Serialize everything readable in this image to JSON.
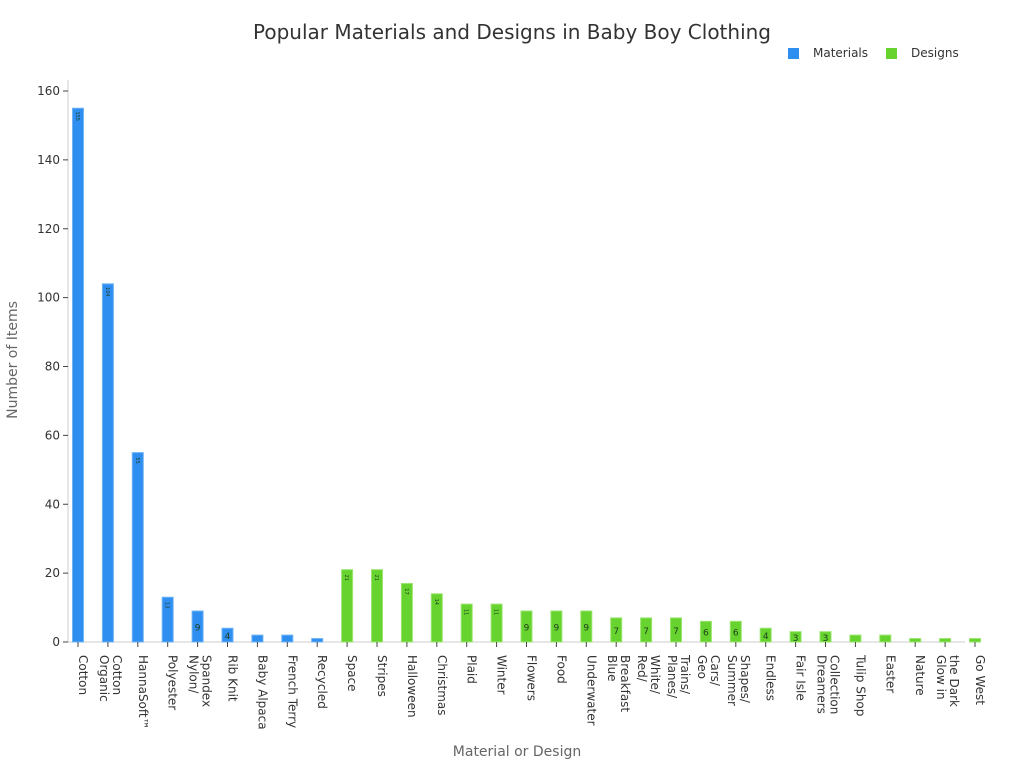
{
  "chart_data": {
    "type": "bar",
    "title": "Popular Materials and Designs in Baby Boy Clothing",
    "xlabel": "Material or Design",
    "ylabel": "Number of Items",
    "ylim": [
      0,
      160
    ],
    "yticks": [
      0,
      20,
      40,
      60,
      80,
      100,
      120,
      140,
      160
    ],
    "grid": false,
    "legend_position": "top-right",
    "legend": [
      {
        "name": "Materials",
        "color": "#2f8ff0"
      },
      {
        "name": "Designs",
        "color": "#66d32e"
      }
    ],
    "categories": [
      "Cotton",
      "Organic Cotton",
      "HannaSoft™",
      "Polyester",
      "Nylon/ Spandex",
      "Rib Knit",
      "Baby Alpaca",
      "French Terry",
      "Recycled",
      "Space",
      "Stripes",
      "Halloween",
      "Christmas",
      "Plaid",
      "Winter",
      "Flowers",
      "Food",
      "Underwater",
      "Blue Breakfast",
      "Red/ White/ Blue",
      "Planes/ Trains/ Cars",
      "Geo Shapes/",
      "Summer Shapes/",
      "Endless",
      "Fair Isle",
      "Dreamers Collection",
      "Tulip Shop",
      "Easter",
      "Nature",
      "Glow in the Dark",
      "Go West"
    ],
    "tick_labels": [
      [
        "Cotton"
      ],
      [
        "Organic",
        "Cotton"
      ],
      [
        "HannaSoft™"
      ],
      [
        "Polyester"
      ],
      [
        "Nylon/",
        "Spandex"
      ],
      [
        "Rib Knit"
      ],
      [
        "Baby Alpaca"
      ],
      [
        "French Terry"
      ],
      [
        "Recycled"
      ],
      [
        "Space"
      ],
      [
        "Stripes"
      ],
      [
        "Halloween"
      ],
      [
        "Christmas"
      ],
      [
        "Plaid"
      ],
      [
        "Winter"
      ],
      [
        "Flowers"
      ],
      [
        "Food"
      ],
      [
        "Underwater"
      ],
      [
        "Blue",
        "Breakfast"
      ],
      [
        "Red/",
        "White/"
      ],
      [
        "Planes/",
        "Trains/"
      ],
      [
        "Geo",
        "Cars/"
      ],
      [
        "Summer",
        "Shapes/"
      ],
      [
        "Endless"
      ],
      [
        "Fair Isle"
      ],
      [
        "Dreamers",
        "Collection"
      ],
      [
        "Tulip Shop"
      ],
      [
        "Easter"
      ],
      [
        "Nature"
      ],
      [
        "Glow in",
        "the Dark"
      ],
      [
        "Go West"
      ]
    ],
    "series": [
      {
        "name": "Materials",
        "values": [
          155,
          104,
          55,
          13,
          9,
          4,
          2,
          2,
          1,
          null,
          null,
          null,
          null,
          null,
          null,
          null,
          null,
          null,
          null,
          null,
          null,
          null,
          null,
          null,
          null,
          null,
          null,
          null,
          null,
          null,
          null
        ]
      },
      {
        "name": "Designs",
        "values": [
          null,
          null,
          null,
          null,
          null,
          null,
          null,
          null,
          null,
          21,
          21,
          17,
          14,
          11,
          11,
          9,
          9,
          9,
          7,
          7,
          7,
          6,
          6,
          4,
          3,
          3,
          2,
          2,
          1,
          1,
          1
        ]
      }
    ],
    "values": [
      155,
      104,
      55,
      13,
      9,
      4,
      2,
      2,
      1,
      21,
      21,
      17,
      14,
      11,
      11,
      9,
      9,
      9,
      7,
      7,
      7,
      6,
      6,
      4,
      3,
      3,
      2,
      2,
      1,
      1,
      1
    ],
    "groups": [
      "Materials",
      "Materials",
      "Materials",
      "Materials",
      "Materials",
      "Materials",
      "Materials",
      "Materials",
      "Materials",
      "Designs",
      "Designs",
      "Designs",
      "Designs",
      "Designs",
      "Designs",
      "Designs",
      "Designs",
      "Designs",
      "Designs",
      "Designs",
      "Designs",
      "Designs",
      "Designs",
      "Designs",
      "Designs",
      "Designs",
      "Designs",
      "Designs",
      "Designs",
      "Designs",
      "Designs"
    ]
  }
}
